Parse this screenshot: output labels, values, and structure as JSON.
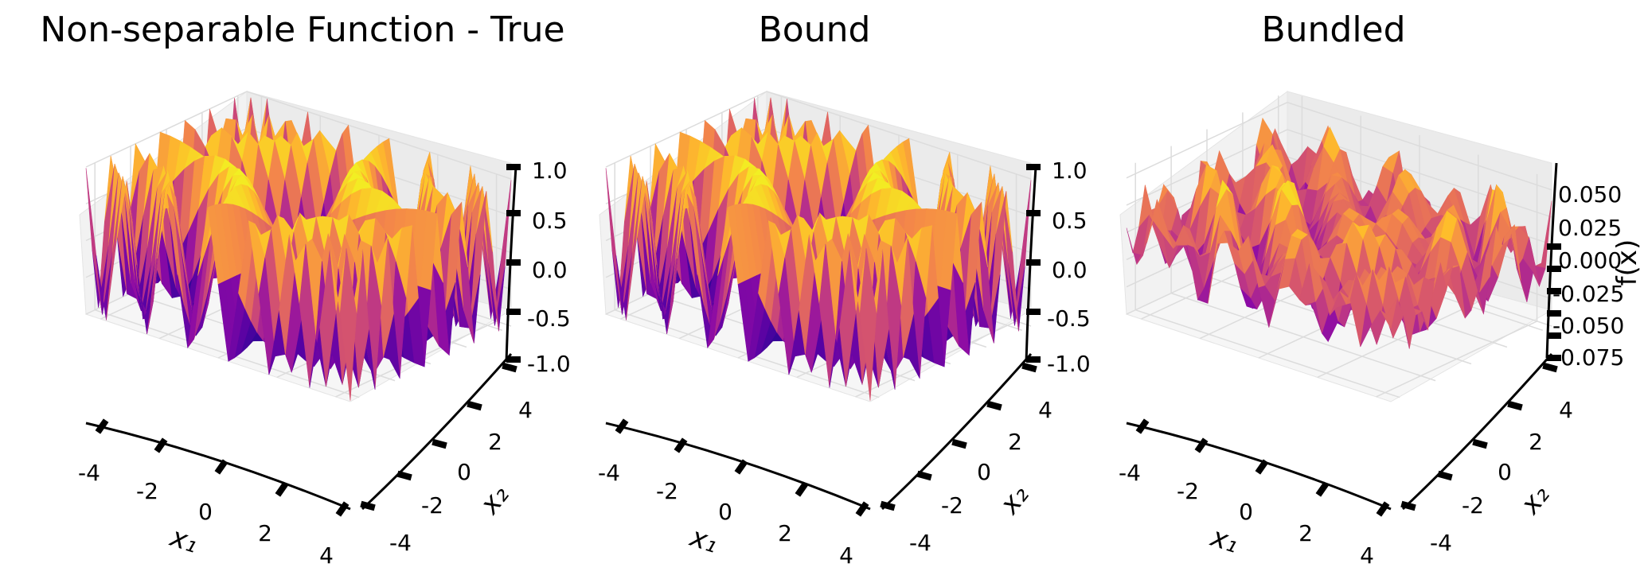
{
  "chart_data": [
    {
      "type": "surface",
      "title": "Non-separable Function - True",
      "xlabel": "x₁",
      "ylabel": "x₂",
      "zlabel": "",
      "x_ticks": [
        "-4",
        "-2",
        "0",
        "2",
        "4"
      ],
      "y_ticks": [
        "-4",
        "-2",
        "0",
        "2",
        "4"
      ],
      "z_ticks": [
        "-1.0",
        "-0.5",
        "0.0",
        "0.5",
        "1.0"
      ],
      "xlim": [
        -4.5,
        4.5
      ],
      "ylim": [
        -4.5,
        4.5
      ],
      "zlim": [
        -1.0,
        1.0
      ],
      "colormap": "plasma",
      "model": "true",
      "amplitude": 1.0
    },
    {
      "type": "surface",
      "title": "Bound",
      "xlabel": "x₁",
      "ylabel": "x₂",
      "zlabel": "",
      "x_ticks": [
        "-4",
        "-2",
        "0",
        "2",
        "4"
      ],
      "y_ticks": [
        "-4",
        "-2",
        "0",
        "2",
        "4"
      ],
      "z_ticks": [
        "-1.0",
        "-0.5",
        "0.0",
        "0.5",
        "1.0"
      ],
      "xlim": [
        -4.5,
        4.5
      ],
      "ylim": [
        -4.5,
        4.5
      ],
      "zlim": [
        -1.0,
        1.0
      ],
      "colormap": "plasma",
      "model": "bound",
      "amplitude": 1.0
    },
    {
      "type": "surface",
      "title": "Bundled",
      "xlabel": "x₁",
      "ylabel": "x₂",
      "zlabel": "f(x)",
      "x_ticks": [
        "-4",
        "-2",
        "0",
        "2",
        "4"
      ],
      "y_ticks": [
        "-4",
        "-2",
        "0",
        "2",
        "4"
      ],
      "z_ticks": [
        "-0.075",
        "-0.050",
        "-0.025",
        "0.000",
        "0.025",
        "0.050"
      ],
      "xlim": [
        -4.5,
        4.5
      ],
      "ylim": [
        -4.5,
        4.5
      ],
      "zlim": [
        -0.075,
        0.06
      ],
      "colormap": "plasma",
      "model": "bundled",
      "amplitude": 0.06
    }
  ]
}
